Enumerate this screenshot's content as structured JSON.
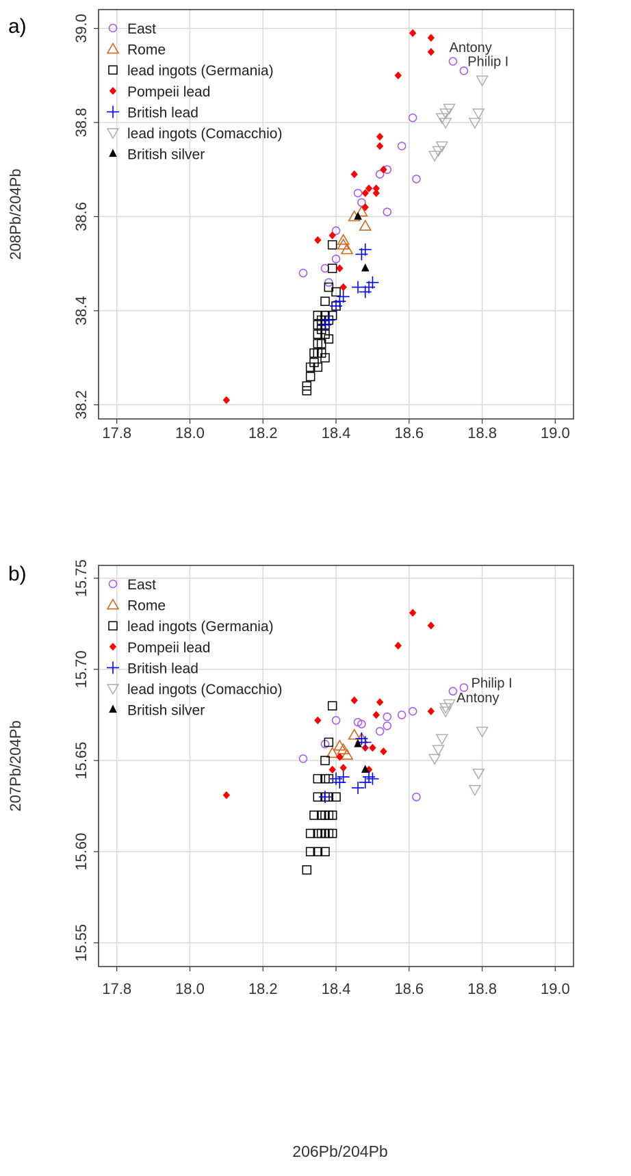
{
  "chart_data": [
    {
      "type": "scatter",
      "panel_label": "a)",
      "xlabel": "",
      "ylabel": "208Pb/204Pb",
      "xlim": [
        17.75,
        19.05
      ],
      "ylim": [
        38.17,
        39.04
      ],
      "xticks": [
        "17.8",
        "18.0",
        "18.2",
        "18.4",
        "18.6",
        "18.8",
        "19.0"
      ],
      "yticks": [
        "38.2",
        "38.4",
        "38.6",
        "38.8",
        "39.0"
      ],
      "grid": true,
      "legend_position": "top-left",
      "series": [
        {
          "name": "East",
          "marker": "circle-open",
          "color": "#a855f7",
          "points": [
            [
              18.31,
              38.48
            ],
            [
              18.37,
              38.49
            ],
            [
              18.38,
              38.46
            ],
            [
              18.4,
              38.57
            ],
            [
              18.4,
              38.51
            ],
            [
              18.46,
              38.65
            ],
            [
              18.47,
              38.63
            ],
            [
              18.52,
              38.69
            ],
            [
              18.54,
              38.7
            ],
            [
              18.54,
              38.61
            ],
            [
              18.58,
              38.75
            ],
            [
              18.61,
              38.81
            ],
            [
              18.62,
              38.68
            ],
            [
              18.72,
              38.93
            ],
            [
              18.75,
              38.91
            ]
          ]
        },
        {
          "name": "Rome",
          "marker": "triangle-up-open",
          "color": "#d2691e",
          "points": [
            [
              18.42,
              38.55
            ],
            [
              18.43,
              38.53
            ],
            [
              18.42,
              38.54
            ],
            [
              18.45,
              38.6
            ],
            [
              18.47,
              38.61
            ],
            [
              18.48,
              38.58
            ]
          ]
        },
        {
          "name": "lead ingots (Germania)",
          "marker": "square-open",
          "color": "#000000",
          "points": [
            [
              18.32,
              38.23
            ],
            [
              18.32,
              38.24
            ],
            [
              18.33,
              38.26
            ],
            [
              18.33,
              38.28
            ],
            [
              18.34,
              38.29
            ],
            [
              18.34,
              38.31
            ],
            [
              18.35,
              38.28
            ],
            [
              18.35,
              38.31
            ],
            [
              18.35,
              38.33
            ],
            [
              18.35,
              38.35
            ],
            [
              18.35,
              38.37
            ],
            [
              18.35,
              38.39
            ],
            [
              18.36,
              38.31
            ],
            [
              18.36,
              38.33
            ],
            [
              18.36,
              38.36
            ],
            [
              18.36,
              38.38
            ],
            [
              18.37,
              38.3
            ],
            [
              18.37,
              38.35
            ],
            [
              18.37,
              38.37
            ],
            [
              18.37,
              38.39
            ],
            [
              18.37,
              38.42
            ],
            [
              18.38,
              38.34
            ],
            [
              18.38,
              38.38
            ],
            [
              18.38,
              38.45
            ],
            [
              18.39,
              38.49
            ],
            [
              18.39,
              38.54
            ],
            [
              18.39,
              38.39
            ],
            [
              18.4,
              38.44
            ],
            [
              18.4,
              38.41
            ]
          ]
        },
        {
          "name": "Pompeii lead",
          "marker": "diamond-filled",
          "color": "#ff0000",
          "points": [
            [
              18.1,
              38.21
            ],
            [
              18.35,
              38.55
            ],
            [
              18.39,
              38.56
            ],
            [
              18.41,
              38.49
            ],
            [
              18.42,
              38.45
            ],
            [
              18.45,
              38.69
            ],
            [
              18.48,
              38.62
            ],
            [
              18.48,
              38.65
            ],
            [
              18.49,
              38.66
            ],
            [
              18.51,
              38.65
            ],
            [
              18.51,
              38.66
            ],
            [
              18.52,
              38.77
            ],
            [
              18.52,
              38.75
            ],
            [
              18.53,
              38.7
            ],
            [
              18.57,
              38.9
            ],
            [
              18.61,
              38.99
            ],
            [
              18.66,
              38.95
            ],
            [
              18.66,
              38.98
            ]
          ]
        },
        {
          "name": "British lead",
          "marker": "plus",
          "color": "#0000ff",
          "points": [
            [
              18.37,
              38.37
            ],
            [
              18.38,
              38.38
            ],
            [
              18.4,
              38.41
            ],
            [
              18.41,
              38.42
            ],
            [
              18.42,
              38.43
            ],
            [
              18.46,
              38.45
            ],
            [
              18.47,
              38.52
            ],
            [
              18.48,
              38.53
            ],
            [
              18.48,
              38.44
            ],
            [
              18.49,
              38.45
            ],
            [
              18.5,
              38.46
            ]
          ]
        },
        {
          "name": "lead ingots (Comacchio)",
          "marker": "triangle-down-open",
          "color": "#aaaaaa",
          "points": [
            [
              18.67,
              38.73
            ],
            [
              18.68,
              38.74
            ],
            [
              18.69,
              38.75
            ],
            [
              18.69,
              38.81
            ],
            [
              18.7,
              38.8
            ],
            [
              18.7,
              38.82
            ],
            [
              18.71,
              38.83
            ],
            [
              18.78,
              38.8
            ],
            [
              18.79,
              38.82
            ],
            [
              18.8,
              38.89
            ]
          ]
        },
        {
          "name": "British silver",
          "marker": "triangle-up-filled",
          "color": "#000000",
          "points": [
            [
              18.46,
              38.6
            ],
            [
              18.48,
              38.49
            ]
          ]
        }
      ],
      "annotations": [
        {
          "text": "Antony",
          "x": 18.71,
          "y": 38.95
        },
        {
          "text": "Philip I",
          "x": 18.76,
          "y": 38.92
        }
      ]
    },
    {
      "type": "scatter",
      "panel_label": "b)",
      "xlabel": "206Pb/204Pb",
      "ylabel": "207Pb/204Pb",
      "xlim": [
        17.75,
        19.05
      ],
      "ylim": [
        15.537,
        15.757
      ],
      "xticks": [
        "17.8",
        "18.0",
        "18.2",
        "18.4",
        "18.6",
        "18.8",
        "19.0"
      ],
      "yticks": [
        "15.55",
        "15.60",
        "15.65",
        "15.70",
        "15.75"
      ],
      "grid": true,
      "legend_position": "top-left",
      "series": [
        {
          "name": "East",
          "marker": "circle-open",
          "color": "#a855f7",
          "points": [
            [
              18.31,
              15.651
            ],
            [
              18.37,
              15.659
            ],
            [
              18.4,
              15.672
            ],
            [
              18.46,
              15.671
            ],
            [
              18.47,
              15.67
            ],
            [
              18.52,
              15.666
            ],
            [
              18.54,
              15.674
            ],
            [
              18.54,
              15.669
            ],
            [
              18.58,
              15.675
            ],
            [
              18.61,
              15.677
            ],
            [
              18.62,
              15.63
            ],
            [
              18.72,
              15.688
            ],
            [
              18.75,
              15.69
            ]
          ]
        },
        {
          "name": "Rome",
          "marker": "triangle-up-open",
          "color": "#d2691e",
          "points": [
            [
              18.39,
              15.654
            ],
            [
              18.41,
              15.658
            ],
            [
              18.42,
              15.656
            ],
            [
              18.43,
              15.653
            ],
            [
              18.45,
              15.664
            ],
            [
              18.47,
              15.662
            ]
          ]
        },
        {
          "name": "lead ingots (Germania)",
          "marker": "square-open",
          "color": "#000000",
          "points": [
            [
              18.32,
              15.59
            ],
            [
              18.33,
              15.6
            ],
            [
              18.33,
              15.61
            ],
            [
              18.34,
              15.62
            ],
            [
              18.35,
              15.6
            ],
            [
              18.35,
              15.61
            ],
            [
              18.35,
              15.63
            ],
            [
              18.35,
              15.64
            ],
            [
              18.36,
              15.62
            ],
            [
              18.36,
              15.61
            ],
            [
              18.37,
              15.6
            ],
            [
              18.37,
              15.61
            ],
            [
              18.37,
              15.62
            ],
            [
              18.37,
              15.63
            ],
            [
              18.37,
              15.64
            ],
            [
              18.37,
              15.65
            ],
            [
              18.38,
              15.61
            ],
            [
              18.38,
              15.62
            ],
            [
              18.38,
              15.63
            ],
            [
              18.38,
              15.64
            ],
            [
              18.38,
              15.66
            ],
            [
              18.39,
              15.61
            ],
            [
              18.39,
              15.62
            ],
            [
              18.39,
              15.68
            ],
            [
              18.4,
              15.63
            ]
          ]
        },
        {
          "name": "Pompeii lead",
          "marker": "diamond-filled",
          "color": "#ff0000",
          "points": [
            [
              18.1,
              15.631
            ],
            [
              18.35,
              15.672
            ],
            [
              18.39,
              15.645
            ],
            [
              18.41,
              15.652
            ],
            [
              18.42,
              15.646
            ],
            [
              18.45,
              15.683
            ],
            [
              18.48,
              15.657
            ],
            [
              18.49,
              15.645
            ],
            [
              18.5,
              15.657
            ],
            [
              18.51,
              15.675
            ],
            [
              18.52,
              15.682
            ],
            [
              18.53,
              15.655
            ],
            [
              18.57,
              15.713
            ],
            [
              18.61,
              15.731
            ],
            [
              18.66,
              15.677
            ],
            [
              18.66,
              15.724
            ]
          ]
        },
        {
          "name": "British lead",
          "marker": "plus",
          "color": "#0000ff",
          "points": [
            [
              18.37,
              15.63
            ],
            [
              18.4,
              15.64
            ],
            [
              18.41,
              15.638
            ],
            [
              18.42,
              15.641
            ],
            [
              18.46,
              15.635
            ],
            [
              18.47,
              15.662
            ],
            [
              18.48,
              15.66
            ],
            [
              18.48,
              15.638
            ],
            [
              18.49,
              15.641
            ],
            [
              18.5,
              15.64
            ]
          ]
        },
        {
          "name": "lead ingots (Comacchio)",
          "marker": "triangle-down-open",
          "color": "#aaaaaa",
          "points": [
            [
              18.67,
              15.651
            ],
            [
              18.68,
              15.656
            ],
            [
              18.69,
              15.662
            ],
            [
              18.7,
              15.679
            ],
            [
              18.7,
              15.677
            ],
            [
              18.71,
              15.681
            ],
            [
              18.78,
              15.634
            ],
            [
              18.79,
              15.643
            ],
            [
              18.8,
              15.666
            ]
          ]
        },
        {
          "name": "British silver",
          "marker": "triangle-up-filled",
          "color": "#000000",
          "points": [
            [
              18.46,
              15.659
            ],
            [
              18.48,
              15.645
            ]
          ]
        }
      ],
      "annotations": [
        {
          "text": "Philip I",
          "x": 18.77,
          "y": 15.69
        },
        {
          "text": "Antony",
          "x": 18.73,
          "y": 15.682
        }
      ]
    }
  ]
}
